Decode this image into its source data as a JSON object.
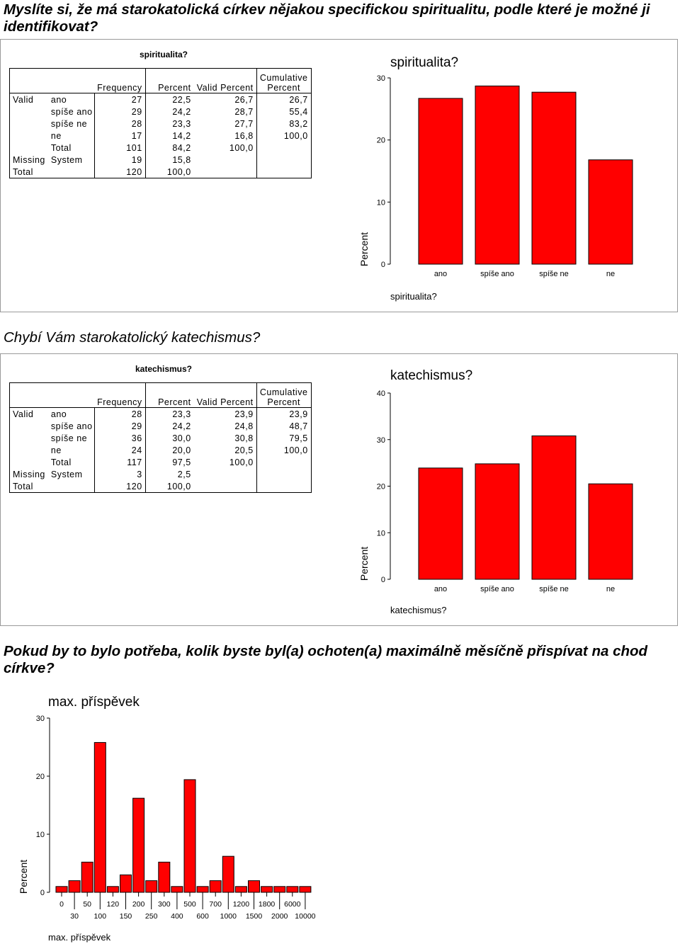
{
  "questions": {
    "q1": "Myslíte si, že má starokatolická církev nějakou specifickou spiritualitu, podle které je možné ji identifikovat?",
    "q2": "Chybí Vám starokatolický katechismus?",
    "q3": "Pokud by to bylo potřeba, kolik byste byl(a) ochoten(a) maximálně měsíčně přispívat na chod církve?"
  },
  "table_headers": {
    "frequency": "Frequency",
    "percent": "Percent",
    "valid_percent": "Valid Percent",
    "cumulative_line1": "Cumulative",
    "cumulative_line2": "Percent"
  },
  "tables": [
    {
      "title": "spiritualita?",
      "rows": [
        {
          "group": "Valid",
          "label": "ano",
          "freq": "27",
          "pct": "22,5",
          "valid": "26,7",
          "cum": "26,7"
        },
        {
          "group": "",
          "label": "spíše ano",
          "freq": "29",
          "pct": "24,2",
          "valid": "28,7",
          "cum": "55,4"
        },
        {
          "group": "",
          "label": "spíše ne",
          "freq": "28",
          "pct": "23,3",
          "valid": "27,7",
          "cum": "83,2"
        },
        {
          "group": "",
          "label": "ne",
          "freq": "17",
          "pct": "14,2",
          "valid": "16,8",
          "cum": "100,0"
        },
        {
          "group": "",
          "label": "Total",
          "freq": "101",
          "pct": "84,2",
          "valid": "100,0",
          "cum": ""
        },
        {
          "group": "Missing",
          "label": "System",
          "freq": "19",
          "pct": "15,8",
          "valid": "",
          "cum": ""
        },
        {
          "group": "Total",
          "label": "",
          "freq": "120",
          "pct": "100,0",
          "valid": "",
          "cum": ""
        }
      ]
    },
    {
      "title": "katechismus?",
      "rows": [
        {
          "group": "Valid",
          "label": "ano",
          "freq": "28",
          "pct": "23,3",
          "valid": "23,9",
          "cum": "23,9"
        },
        {
          "group": "",
          "label": "spíše ano",
          "freq": "29",
          "pct": "24,2",
          "valid": "24,8",
          "cum": "48,7"
        },
        {
          "group": "",
          "label": "spíše ne",
          "freq": "36",
          "pct": "30,0",
          "valid": "30,8",
          "cum": "79,5"
        },
        {
          "group": "",
          "label": "ne",
          "freq": "24",
          "pct": "20,0",
          "valid": "20,5",
          "cum": "100,0"
        },
        {
          "group": "",
          "label": "Total",
          "freq": "117",
          "pct": "97,5",
          "valid": "100,0",
          "cum": ""
        },
        {
          "group": "Missing",
          "label": "System",
          "freq": "3",
          "pct": "2,5",
          "valid": "",
          "cum": ""
        },
        {
          "group": "Total",
          "label": "",
          "freq": "120",
          "pct": "100,0",
          "valid": "",
          "cum": ""
        }
      ]
    }
  ],
  "chart_data": [
    {
      "type": "bar",
      "title": "spiritualita?",
      "xlabel": "spiritualita?",
      "ylabel": "Percent",
      "categories": [
        "ano",
        "spíše ano",
        "spíše ne",
        "ne"
      ],
      "values": [
        26.7,
        28.7,
        27.7,
        16.8
      ],
      "ylim": [
        0,
        30
      ],
      "yticks": [
        0,
        10,
        20,
        30
      ],
      "bar_color": "#ff0000"
    },
    {
      "type": "bar",
      "title": "katechismus?",
      "xlabel": "katechismus?",
      "ylabel": "Percent",
      "categories": [
        "ano",
        "spíše ano",
        "spíše ne",
        "ne"
      ],
      "values": [
        23.9,
        24.8,
        30.8,
        20.5
      ],
      "ylim": [
        0,
        40
      ],
      "yticks": [
        0,
        10,
        20,
        30,
        40
      ],
      "bar_color": "#ff0000"
    },
    {
      "type": "bar",
      "title": "max. příspěvek",
      "xlabel": "max. příspěvek",
      "ylabel": "Percent",
      "categories": [
        "0",
        "30",
        "50",
        "100",
        "120",
        "150",
        "200",
        "250",
        "300",
        "400",
        "500",
        "600",
        "700",
        "1000",
        "1200",
        "1500",
        "1800",
        "2000",
        "6000",
        "10000"
      ],
      "values": [
        1.0,
        2.0,
        5.2,
        25.8,
        1.0,
        3.0,
        16.2,
        2.0,
        5.2,
        1.0,
        19.4,
        1.0,
        2.0,
        6.2,
        1.0,
        2.0,
        1.0,
        1.0,
        1.0,
        1.0
      ],
      "ylim": [
        0,
        30
      ],
      "yticks": [
        0,
        10,
        20,
        30
      ],
      "bar_color": "#ff0000"
    }
  ]
}
